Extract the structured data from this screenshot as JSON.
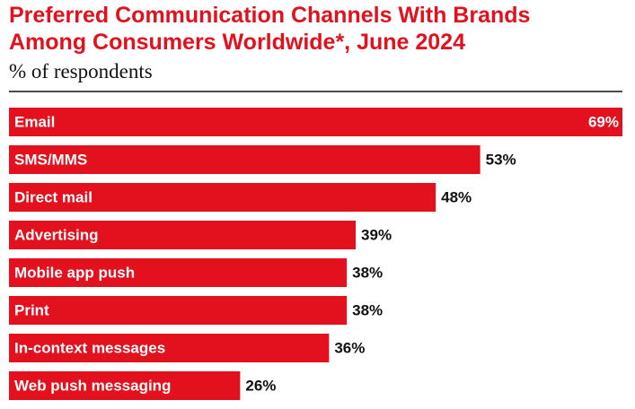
{
  "chart_data": {
    "type": "bar",
    "orientation": "horizontal",
    "title": "Preferred Communication Channels With Brands Among Consumers Worldwide*, June 2024",
    "subtitle": "% of respondents",
    "categories": [
      "Email",
      "SMS/MMS",
      "Direct mail",
      "Advertising",
      "Mobile app push",
      "Print",
      "In-context messages",
      "Web push messaging"
    ],
    "values": [
      69,
      53,
      48,
      39,
      38,
      38,
      36,
      26
    ],
    "value_labels": [
      "69%",
      "53%",
      "48%",
      "39%",
      "38%",
      "38%",
      "36%",
      "26%"
    ],
    "color": "#e3101e"
  }
}
